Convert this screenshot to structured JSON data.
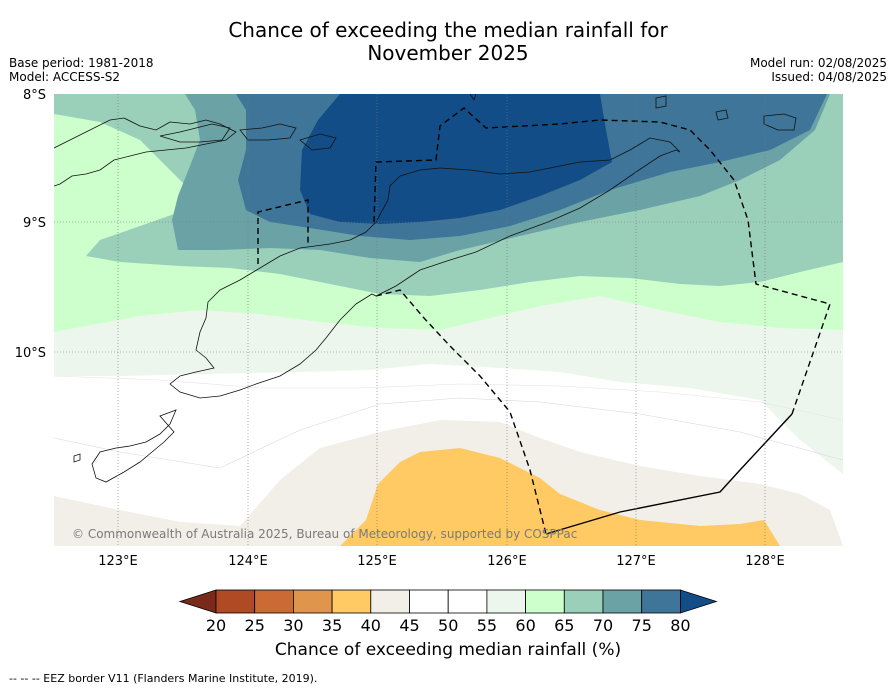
{
  "title_line1": "Chance of exceeding the median rainfall for",
  "title_line2": "November 2025",
  "base_period": "Base period: 1981-2018",
  "model": "Model: ACCESS-S2",
  "model_run": "Model run: 02/08/2025",
  "issued": "Issued: 04/08/2025",
  "lat_labels": [
    "8°S",
    "9°S",
    "10°S"
  ],
  "lon_labels": [
    "123°E",
    "124°E",
    "125°E",
    "126°E",
    "127°E",
    "128°E"
  ],
  "copyright": "© Commonwealth of Australia 2025, Bureau of Meteorology, supported by COSPPac",
  "colorbar": {
    "ticks": [
      "20",
      "25",
      "30",
      "35",
      "40",
      "45",
      "50",
      "55",
      "60",
      "65",
      "70",
      "75",
      "80"
    ],
    "colors": [
      "#7a2a1a",
      "#b04a25",
      "#cc6a35",
      "#e0954d",
      "#ffca64",
      "#f2eee8",
      "#ffffff",
      "#ffffff",
      "#ecf6ec",
      "#ccffcc",
      "#9acfba",
      "#6aa2a6",
      "#3e7599",
      "#134d87"
    ],
    "label": "Chance of exceeding median rainfall (%)"
  },
  "footer": "--  --  -- EEZ border V11 (Flanders Marine Institute, 2019)."
}
